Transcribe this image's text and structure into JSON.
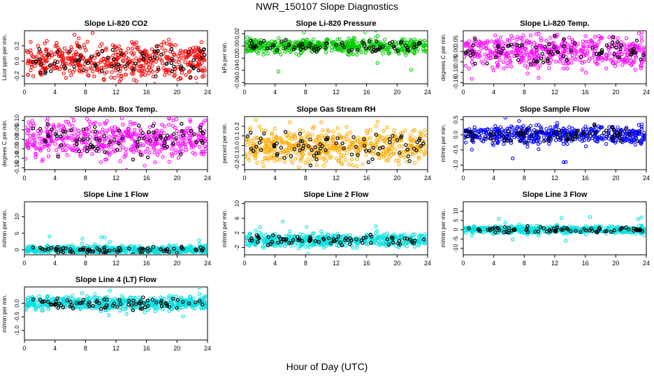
{
  "page": {
    "title": "NWR_150107  Slope Diagnostics",
    "xlabel": "Hour of Day (UTC)"
  },
  "chart_data": [
    {
      "type": "scatter",
      "title": "Slope Li-820 CO2",
      "ylabel": "Licor ppm per min.",
      "color": "#ff0000",
      "xlim": [
        0,
        24
      ],
      "ylim": [
        -0.3,
        0.4
      ],
      "xticks": [
        0,
        4,
        8,
        12,
        16,
        20,
        24
      ],
      "yticks": [
        -0.2,
        0.0,
        0.2
      ],
      "ytick_labels": [
        "-0.2",
        "0.0",
        "0.2"
      ],
      "spread": 0.12
    },
    {
      "type": "scatter",
      "title": "Slope Li-820 Pressure",
      "ylabel": "kPa per min.",
      "color": "#00cc00",
      "xlim": [
        0,
        24
      ],
      "ylim": [
        -0.062,
        0.025
      ],
      "xticks": [
        0,
        4,
        8,
        12,
        16,
        20,
        24
      ],
      "yticks": [
        -0.06,
        -0.04,
        -0.02,
        0.0,
        0.02
      ],
      "ytick_labels": [
        "-0.06",
        "-0.04",
        "-0.02",
        "0.00",
        "0.02"
      ],
      "spread": 0.006
    },
    {
      "type": "scatter",
      "title": "Slope Li-820 Temp.",
      "ylabel": "degrees C per min.",
      "color": "#ff00ff",
      "xlim": [
        0,
        24
      ],
      "ylim": [
        -0.155,
        0.1
      ],
      "xticks": [
        0,
        4,
        8,
        12,
        16,
        20,
        24
      ],
      "yticks": [
        -0.15,
        -0.1,
        -0.05,
        0.0,
        0.05
      ],
      "ytick_labels": [
        "-0.15",
        "-0.10",
        "-0.05",
        "0.00",
        "0.05"
      ],
      "spread": 0.04
    },
    {
      "type": "scatter",
      "title": "Slope Amb. Box Temp.",
      "ylabel": "degrees C per min.",
      "color": "#ff00ff",
      "xlim": [
        0,
        24
      ],
      "ylim": [
        -0.16,
        0.12
      ],
      "xticks": [
        0,
        4,
        8,
        12,
        16,
        20,
        24
      ],
      "yticks": [
        -0.15,
        -0.1,
        -0.05,
        0.0,
        0.05,
        0.1
      ],
      "ytick_labels": [
        "-0.15",
        "-0.10",
        "-0.05",
        "0.00",
        "0.05",
        "0.10"
      ],
      "spread": 0.05
    },
    {
      "type": "scatter",
      "title": "Slope Gas Stream RH",
      "ylabel": "percent per min.",
      "color": "#ffaa00",
      "xlim": [
        0,
        24
      ],
      "ylim": [
        -0.25,
        0.3
      ],
      "xticks": [
        0,
        4,
        8,
        12,
        16,
        20,
        24
      ],
      "yticks": [
        -0.2,
        -0.1,
        0.0,
        0.1,
        0.2
      ],
      "ytick_labels": [
        "-0.2",
        "-0.1",
        "0.0",
        "0.1",
        "0.2"
      ],
      "spread": 0.09
    },
    {
      "type": "scatter",
      "title": "Slope Sample Flow",
      "ylabel": "ml/min per min.",
      "color": "#0000ff",
      "xlim": [
        0,
        24
      ],
      "ylim": [
        -1.15,
        0.6
      ],
      "xticks": [
        0,
        4,
        8,
        12,
        16,
        20,
        24
      ],
      "yticks": [
        -1.0,
        -0.5,
        0.0,
        0.5
      ],
      "ytick_labels": [
        "-1.0",
        "-0.5",
        "0.0",
        "0.5"
      ],
      "spread": 0.15
    },
    {
      "type": "scatter",
      "title": "Slope Line 1 Flow",
      "ylabel": "ml/min per min.",
      "color": "#00e0e0",
      "xlim": [
        0,
        24
      ],
      "ylim": [
        -1.5,
        14.5
      ],
      "xticks": [
        0,
        4,
        8,
        12,
        16,
        20,
        24
      ],
      "yticks": [
        0,
        5,
        10
      ],
      "ytick_labels": [
        "0",
        "5",
        "10"
      ],
      "spread": 0.6
    },
    {
      "type": "scatter",
      "title": "Slope Line 2 Flow",
      "ylabel": "ml/min per min.",
      "color": "#00e0e0",
      "xlim": [
        0,
        24
      ],
      "ylim": [
        -4,
        10.5
      ],
      "xticks": [
        0,
        4,
        8,
        12,
        16,
        20,
        24
      ],
      "yticks": [
        -2,
        2,
        6,
        10
      ],
      "ytick_labels": [
        "-2",
        "2",
        "6",
        "10"
      ],
      "spread": 0.9
    },
    {
      "type": "scatter",
      "title": "Slope Line 3 Flow",
      "ylabel": "ml/min per min.",
      "color": "#00e0e0",
      "xlim": [
        0,
        24
      ],
      "ylim": [
        -13.5,
        15
      ],
      "xticks": [
        0,
        4,
        8,
        12,
        16,
        20,
        24
      ],
      "yticks": [
        -10,
        -5,
        0,
        5,
        10
      ],
      "ytick_labels": [
        "-10",
        "-5",
        "0",
        "5",
        "10"
      ],
      "spread": 1.0
    },
    {
      "type": "scatter",
      "title": "Slope Line 4 (LT) Flow",
      "ylabel": "ml/min per min.",
      "color": "#00e0e0",
      "xlim": [
        0,
        24
      ],
      "ylim": [
        -1.35,
        0.6
      ],
      "xticks": [
        0,
        4,
        8,
        12,
        16,
        20,
        24
      ],
      "yticks": [
        -1.0,
        -0.5,
        0.0
      ],
      "ytick_labels": [
        "-1.0",
        "-0.5",
        "0.0"
      ],
      "spread": 0.12
    }
  ]
}
